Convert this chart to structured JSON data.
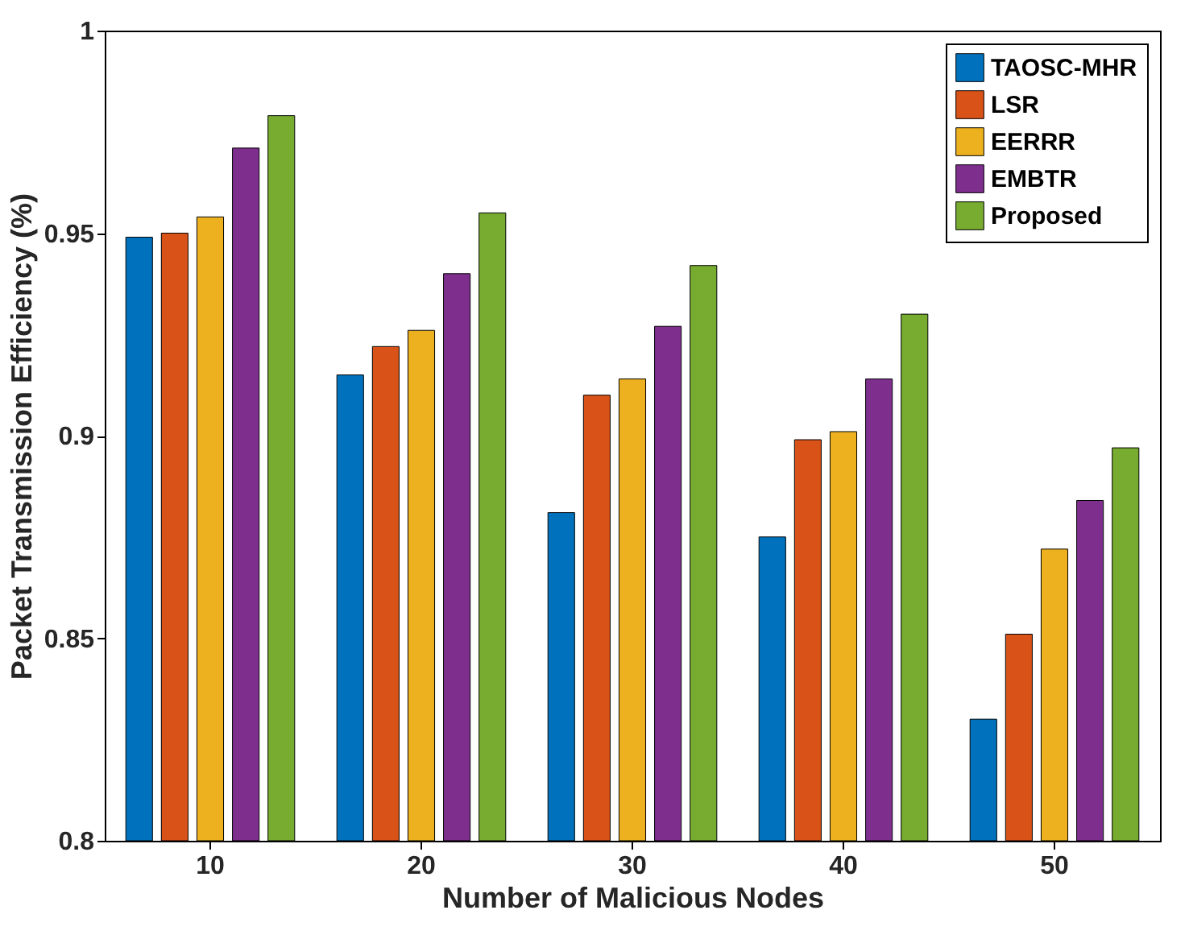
{
  "chart_data": {
    "type": "bar",
    "xlabel": "Number of Malicious Nodes",
    "ylabel": "Packet Transmission Efficiency (%)",
    "categories": [
      "10",
      "20",
      "30",
      "40",
      "50"
    ],
    "series": [
      {
        "name": "TAOSC-MHR",
        "color": "#0072bd",
        "values": [
          0.949,
          0.915,
          0.881,
          0.875,
          0.83
        ]
      },
      {
        "name": "LSR",
        "color": "#d95319",
        "values": [
          0.95,
          0.922,
          0.91,
          0.899,
          0.851
        ]
      },
      {
        "name": "EERRR",
        "color": "#edb120",
        "values": [
          0.954,
          0.926,
          0.914,
          0.901,
          0.872
        ]
      },
      {
        "name": "EMBTR",
        "color": "#7e2f8e",
        "values": [
          0.971,
          0.94,
          0.927,
          0.914,
          0.884
        ]
      },
      {
        "name": "Proposed",
        "color": "#77ac30",
        "values": [
          0.979,
          0.955,
          0.942,
          0.93,
          0.897
        ]
      }
    ],
    "ylim": [
      0.8,
      1
    ],
    "yticks": [
      0.8,
      0.85,
      0.9,
      0.95,
      1
    ],
    "legend": "top right"
  }
}
